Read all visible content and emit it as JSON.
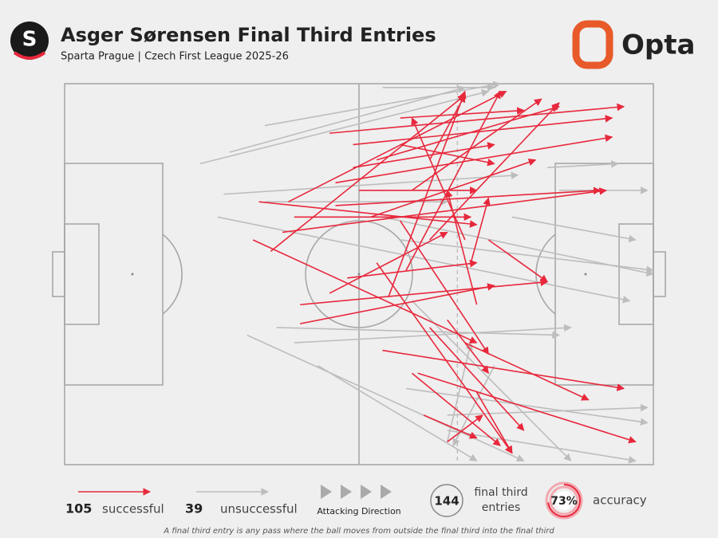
{
  "chart_data": {
    "type": "pass-map",
    "title": "Asger Sørensen Final Third Entries",
    "subtitle": "Sparta Prague | Czech First League 2025-26",
    "brand": "Opta",
    "badge": "S",
    "xlim": [
      0,
      100
    ],
    "ylim": [
      0,
      100
    ],
    "final_third_x": 66.7,
    "series": [
      {
        "name": "successful",
        "count": 105,
        "color": "#e8283c",
        "values": [
          [
            45,
            13,
            95,
            6
          ],
          [
            38,
            31,
            75,
            2
          ],
          [
            35,
            44,
            68,
            3
          ],
          [
            32,
            41,
            70,
            68
          ],
          [
            40,
            58,
            82,
            52
          ],
          [
            37,
            39,
            92,
            28
          ],
          [
            46,
            26,
            93,
            14
          ],
          [
            57,
            36,
            72,
            71
          ],
          [
            53,
            47,
            76,
            97
          ],
          [
            54,
            70,
            95,
            80
          ],
          [
            60,
            76,
            97,
            94
          ],
          [
            61,
            87,
            70,
            93
          ],
          [
            65,
            94,
            71,
            87
          ],
          [
            62,
            41,
            84,
            5
          ],
          [
            46,
            32,
            91,
            28
          ],
          [
            40,
            63,
            73,
            53
          ],
          [
            58,
            49,
            74,
            2
          ],
          [
            65,
            62,
            72,
            76
          ],
          [
            70,
            81,
            76,
            97
          ],
          [
            53,
            20,
            84,
            6
          ],
          [
            33,
            31,
            70,
            37
          ],
          [
            49,
            22,
            73,
            16
          ],
          [
            57,
            9,
            78,
            7
          ],
          [
            48,
            51,
            70,
            47
          ],
          [
            68,
            41,
            59,
            9
          ],
          [
            62,
            20,
            68,
            3
          ],
          [
            55,
            56,
            68,
            2
          ],
          [
            70,
            58,
            65,
            28
          ],
          [
            39,
            35,
            69,
            35
          ],
          [
            59,
            28,
            81,
            4
          ],
          [
            49,
            16,
            93,
            9
          ],
          [
            57,
            16,
            73,
            21
          ],
          [
            62,
            64,
            78,
            91
          ],
          [
            68,
            68,
            89,
            83
          ],
          [
            72,
            41,
            82,
            52
          ],
          [
            52,
            35,
            80,
            20
          ],
          [
            59,
            76,
            74,
            95
          ],
          [
            69,
            47,
            72,
            30
          ],
          [
            50,
            28,
            70,
            28
          ],
          [
            45,
            55,
            65,
            39
          ]
        ]
      },
      {
        "name": "unsuccessful",
        "count": 39,
        "color": "#bdbdbd",
        "values": [
          [
            34,
            11,
            74,
            0
          ],
          [
            23,
            21,
            72,
            2
          ],
          [
            28,
            18,
            68,
            1
          ],
          [
            26,
            35,
            96,
            57
          ],
          [
            31,
            66,
            78,
            99
          ],
          [
            39,
            68,
            86,
            64
          ],
          [
            36,
            64,
            84,
            66
          ],
          [
            54,
            1,
            73,
            1
          ],
          [
            58,
            80,
            99,
            89
          ],
          [
            65,
            94,
            69,
            68
          ],
          [
            73,
            74,
            66,
            95
          ],
          [
            57,
            41,
            100,
            49
          ],
          [
            65,
            91,
            97,
            99
          ],
          [
            27,
            29,
            77,
            24
          ],
          [
            84,
            28,
            99,
            28
          ],
          [
            82,
            22,
            94,
            21
          ],
          [
            59,
            57,
            86,
            99
          ],
          [
            43,
            74,
            70,
            99
          ],
          [
            65,
            87,
            99,
            85
          ],
          [
            76,
            35,
            97,
            41
          ],
          [
            54,
            35,
            100,
            50
          ],
          [
            34,
            31,
            65,
            31
          ]
        ]
      }
    ],
    "attacking_direction": "Attacking Direction",
    "entries": {
      "value": 144,
      "label": "final third entries"
    },
    "accuracy": {
      "value": 73,
      "label": "73%",
      "name": "accuracy"
    },
    "footnote": "A final third entry is any pass where the ball moves from outside the final third into the final third"
  }
}
